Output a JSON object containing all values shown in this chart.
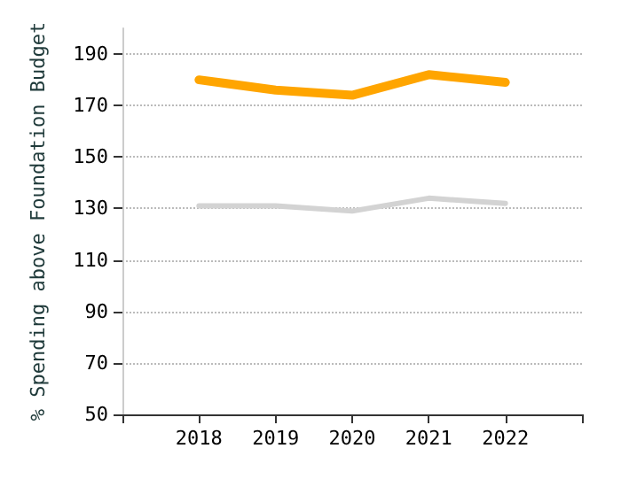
{
  "chart_data": {
    "type": "line",
    "ylabel": "% Spending above Foundation Budget",
    "categories": [
      null,
      "2018",
      "2019",
      "2020",
      "2021",
      "2022",
      null
    ],
    "series": [
      {
        "color": "#ffa500",
        "values": [
          null,
          180,
          176,
          174,
          182,
          179,
          null
        ]
      },
      {
        "color": "#d3d3d3",
        "values": [
          null,
          131,
          131,
          129,
          134,
          132,
          null
        ]
      }
    ],
    "ylim": [
      50,
      200
    ],
    "yticks": [
      50,
      70,
      90,
      110,
      130,
      150,
      170,
      190
    ],
    "grid": "y",
    "marker": "none",
    "line_style": "solid"
  }
}
